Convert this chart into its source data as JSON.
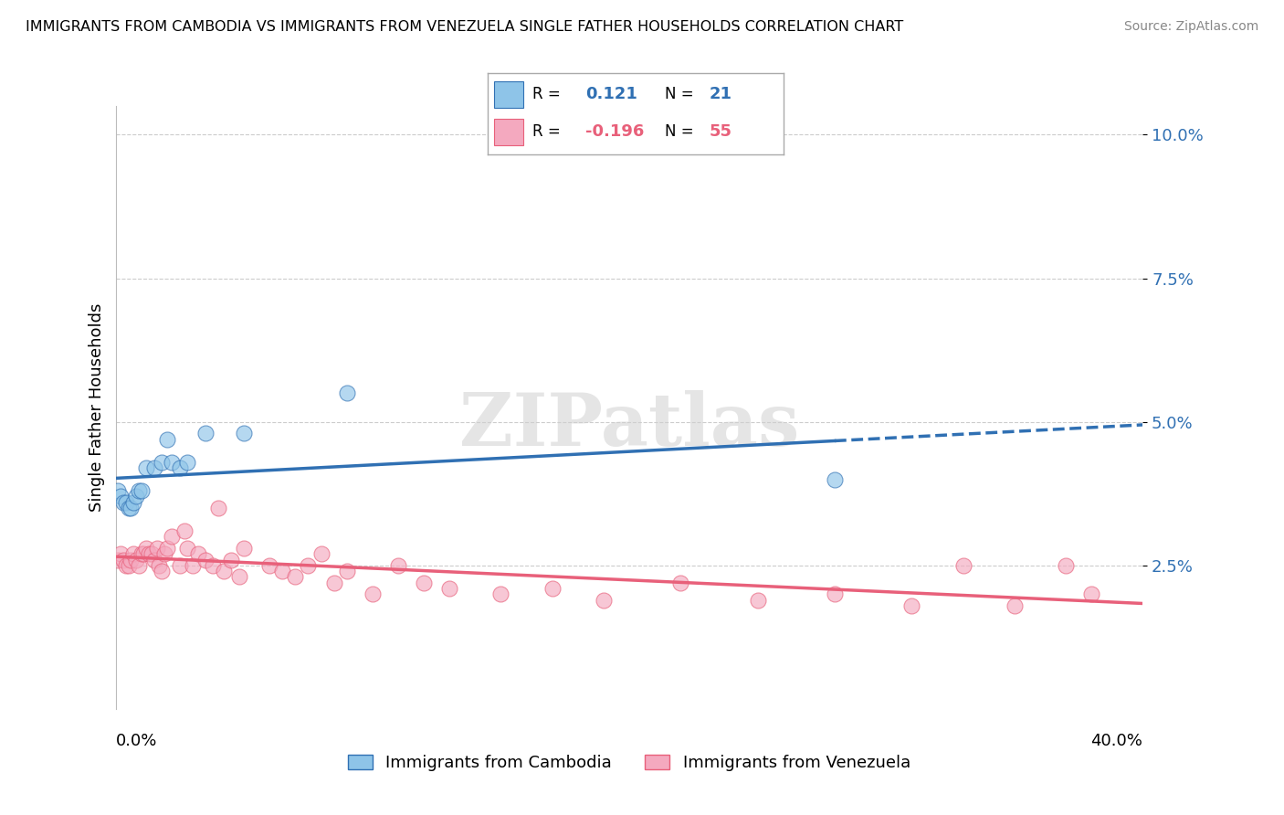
{
  "title": "IMMIGRANTS FROM CAMBODIA VS IMMIGRANTS FROM VENEZUELA SINGLE FATHER HOUSEHOLDS CORRELATION CHART",
  "source": "Source: ZipAtlas.com",
  "ylabel": "Single Father Households",
  "color_blue": "#8ec4e8",
  "color_pink": "#f4a9bf",
  "color_blue_line": "#3070b3",
  "color_pink_line": "#e8607a",
  "color_blue_text": "#3070b3",
  "color_pink_text": "#e8607a",
  "watermark": "ZIPatlas",
  "cambodia_x": [
    0.001,
    0.002,
    0.003,
    0.004,
    0.005,
    0.006,
    0.007,
    0.008,
    0.009,
    0.01,
    0.012,
    0.015,
    0.018,
    0.02,
    0.022,
    0.025,
    0.028,
    0.035,
    0.05,
    0.09,
    0.28
  ],
  "cambodia_y": [
    0.038,
    0.037,
    0.036,
    0.036,
    0.035,
    0.035,
    0.036,
    0.037,
    0.038,
    0.038,
    0.042,
    0.042,
    0.043,
    0.047,
    0.043,
    0.042,
    0.043,
    0.048,
    0.048,
    0.055,
    0.04
  ],
  "venezuela_x": [
    0.001,
    0.002,
    0.003,
    0.004,
    0.005,
    0.006,
    0.007,
    0.008,
    0.009,
    0.01,
    0.011,
    0.012,
    0.013,
    0.014,
    0.015,
    0.016,
    0.017,
    0.018,
    0.019,
    0.02,
    0.022,
    0.025,
    0.027,
    0.028,
    0.03,
    0.032,
    0.035,
    0.038,
    0.04,
    0.042,
    0.045,
    0.048,
    0.05,
    0.06,
    0.065,
    0.07,
    0.075,
    0.08,
    0.085,
    0.09,
    0.1,
    0.11,
    0.12,
    0.13,
    0.15,
    0.17,
    0.19,
    0.22,
    0.25,
    0.28,
    0.31,
    0.33,
    0.35,
    0.37,
    0.38
  ],
  "venezuela_y": [
    0.026,
    0.027,
    0.026,
    0.025,
    0.025,
    0.026,
    0.027,
    0.026,
    0.025,
    0.027,
    0.027,
    0.028,
    0.027,
    0.027,
    0.026,
    0.028,
    0.025,
    0.024,
    0.027,
    0.028,
    0.03,
    0.025,
    0.031,
    0.028,
    0.025,
    0.027,
    0.026,
    0.025,
    0.035,
    0.024,
    0.026,
    0.023,
    0.028,
    0.025,
    0.024,
    0.023,
    0.025,
    0.027,
    0.022,
    0.024,
    0.02,
    0.025,
    0.022,
    0.021,
    0.02,
    0.021,
    0.019,
    0.022,
    0.019,
    0.02,
    0.018,
    0.025,
    0.018,
    0.025,
    0.02
  ],
  "xlim": [
    0.0,
    0.4
  ],
  "ylim": [
    0.0,
    0.105
  ],
  "yticks": [
    0.025,
    0.05,
    0.075,
    0.1
  ],
  "ytick_labels": [
    "2.5%",
    "5.0%",
    "7.5%",
    "10.0%"
  ],
  "grid_color": "#cccccc",
  "bottom_legend_blue": "Immigrants from Cambodia",
  "bottom_legend_pink": "Immigrants from Venezuela",
  "legend_r_blue": "0.121",
  "legend_n_blue": "21",
  "legend_r_pink": "-0.196",
  "legend_n_pink": "55"
}
